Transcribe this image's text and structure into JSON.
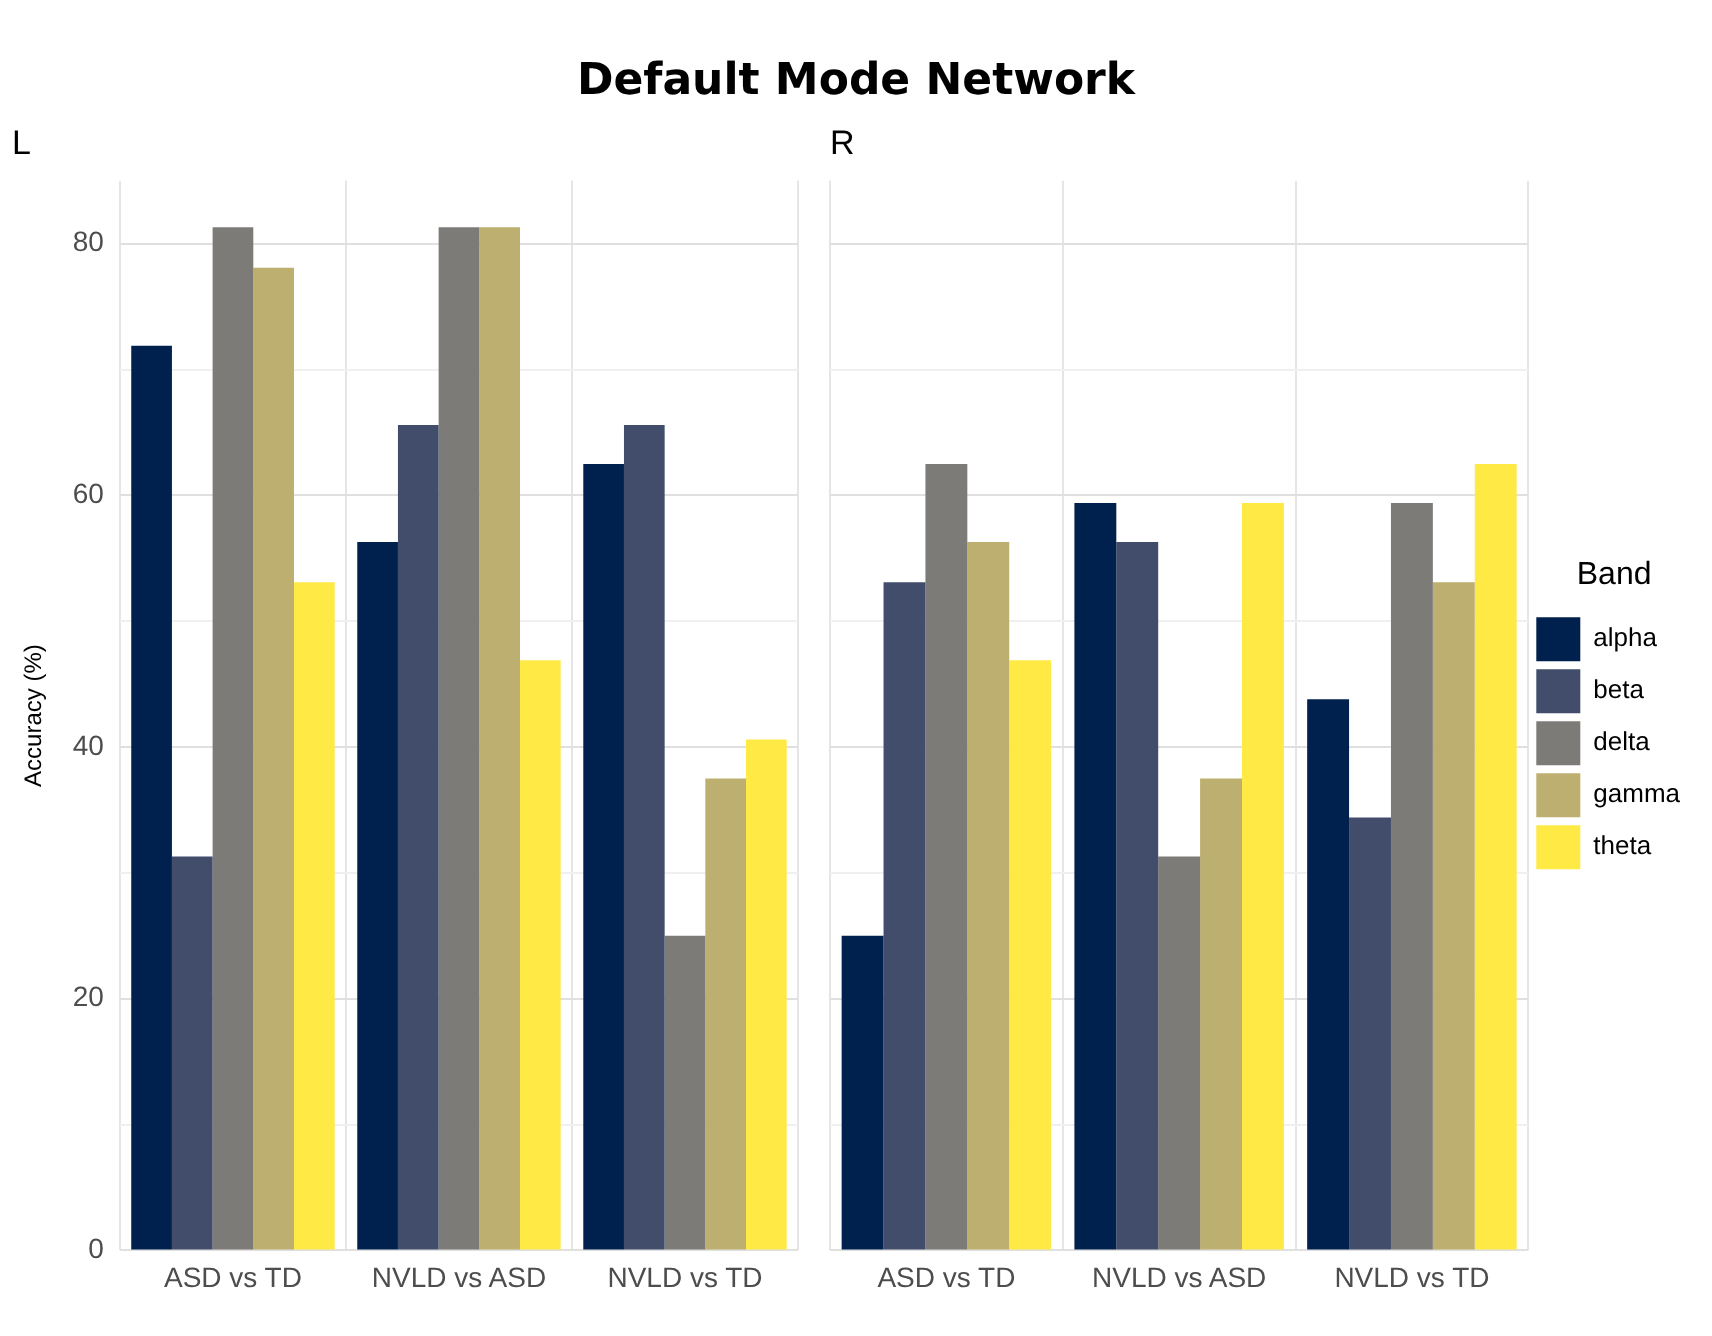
{
  "chart_data": [
    {
      "type": "bar",
      "title": "Default Mode Network",
      "subtitle": "L",
      "ylabel": "Accuracy (%)",
      "categories": [
        "ASD vs TD",
        "NVLD vs ASD",
        "NVLD vs TD"
      ],
      "series": [
        {
          "color": "#00204d",
          "values": [
            71.9,
            56.3,
            62.5
          ]
        },
        {
          "color": "#414d6b",
          "values": [
            31.3,
            65.6,
            65.6
          ]
        },
        {
          "color": "#7c7b78",
          "values": [
            81.3,
            81.3,
            25
          ]
        },
        {
          "color": "#bcaf6f",
          "values": [
            78.1,
            81.3,
            37.5
          ]
        },
        {
          "color": "#ffe945",
          "values": [
            53.1,
            46.9,
            40.6
          ]
        }
      ],
      "ylim": [
        0,
        85
      ],
      "yticks": [
        0,
        {
          "value": 10,
          "label": null
        },
        20,
        {
          "value": 30,
          "label": null
        },
        40,
        {
          "value": 50,
          "label": null
        },
        60,
        {
          "value": 70,
          "label": null
        },
        80
      ],
      "grid": true,
      "legend": false
    },
    {
      "type": "bar",
      "subtitle": "R",
      "categories": [
        "ASD vs TD",
        "NVLD vs ASD",
        "NVLD vs TD"
      ],
      "series": [
        {
          "name": "alpha",
          "color": "#00204d",
          "values": [
            25,
            59.4,
            43.8
          ]
        },
        {
          "name": "beta",
          "color": "#414d6b",
          "values": [
            53.1,
            56.3,
            34.4
          ]
        },
        {
          "name": "delta",
          "color": "#7c7b78",
          "values": [
            62.5,
            31.3,
            59.4
          ]
        },
        {
          "name": "gamma",
          "color": "#bcaf6f",
          "values": [
            56.3,
            37.5,
            53.1
          ]
        },
        {
          "name": "theta",
          "color": "#ffe945",
          "values": [
            46.9,
            59.4,
            62.5
          ]
        }
      ],
      "ylim": [
        0,
        85
      ],
      "yticks": [
        0,
        {
          "value": 10,
          "label": null
        },
        20,
        {
          "value": 30,
          "label": null
        },
        40,
        {
          "value": 50,
          "label": null
        },
        60,
        {
          "value": 70,
          "label": null
        },
        80
      ],
      "grid": true,
      "tick_labels": "x",
      "legend": "right",
      "legend_title": "Band"
    }
  ]
}
